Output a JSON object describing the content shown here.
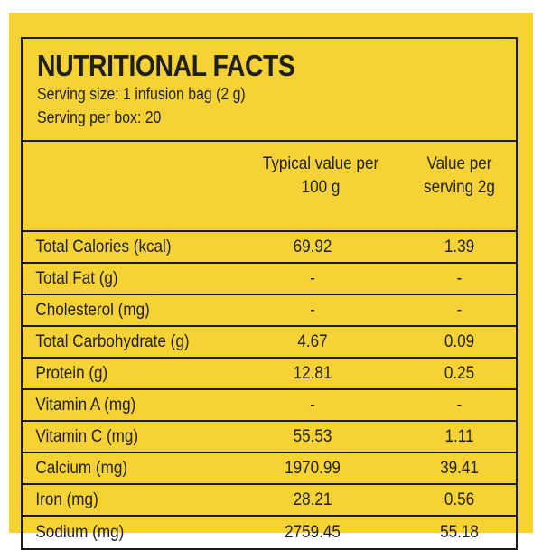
{
  "label": {
    "title": "NUTRITIONAL FACTS",
    "serving_size": "Serving size: 1 infusion bag (2 g)",
    "servings_per_box": "Serving per box: 20"
  },
  "columns": {
    "name": "",
    "per_100g": "Typical value per\n100 g",
    "per_serving": "Value per\nserving 2g"
  },
  "rows": [
    {
      "name": "Total Calories (kcal)",
      "per_100g": "69.92",
      "per_serving": "1.39"
    },
    {
      "name": "Total Fat (g)",
      "per_100g": "-",
      "per_serving": "-"
    },
    {
      "name": "Cholesterol (mg)",
      "per_100g": "-",
      "per_serving": "-"
    },
    {
      "name": "Total Carbohydrate (g)",
      "per_100g": "4.67",
      "per_serving": "0.09"
    },
    {
      "name": "Protein (g)",
      "per_100g": "12.81",
      "per_serving": "0.25"
    },
    {
      "name": "Vitamin A (mg)",
      "per_100g": "-",
      "per_serving": "-"
    },
    {
      "name": "Vitamin C (mg)",
      "per_100g": "55.53",
      "per_serving": "1.11"
    },
    {
      "name": "Calcium (mg)",
      "per_100g": "1970.99",
      "per_serving": "39.41"
    },
    {
      "name": "Iron (mg)",
      "per_100g": "28.21",
      "per_serving": "0.56"
    },
    {
      "name": "Sodium (mg)",
      "per_100g": "2759.45",
      "per_serving": "55.18"
    }
  ],
  "colors": {
    "background": "#F6D234",
    "text": "#1f1f1f",
    "border": "#1a1a1a"
  }
}
